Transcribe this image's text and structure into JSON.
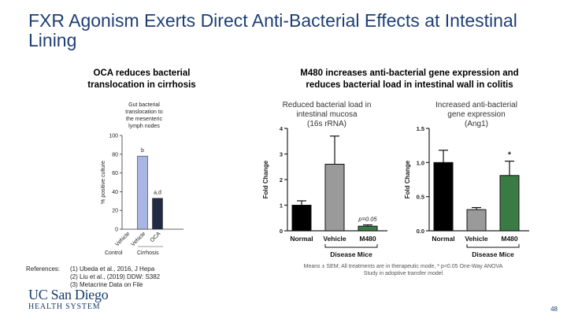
{
  "slide": {
    "title": "FXR Agonism Exerts Direct Anti-Bacterial Effects at Intestinal Lining",
    "page_number": "48"
  },
  "left_panel": {
    "heading_lines": [
      "OCA reduces bacterial",
      "translocation in cirrhosis"
    ]
  },
  "right_panel": {
    "heading_lines": [
      "M480 increases anti-bacterial gene expression and",
      "reduces bacterial load in intestinal wall in colitis"
    ]
  },
  "references": {
    "label": "References:",
    "items": [
      "(1) Ubeda et al., 2016, J Hepa",
      "(2) Liu et al., (2019) DDW: S382",
      "(3) Metacrine Data on File"
    ]
  },
  "footnote_lines": [
    "Means ± SEM; All treatments are in therapeutic mode, * p<0.05 One-Way ANOVA",
    "Study in adoptive transfer model"
  ],
  "logo": {
    "line1": "UC San Diego",
    "line2": "HEALTH SYSTEM"
  },
  "chart_data": [
    {
      "type": "bar",
      "title": "Gut bacterial translocation to the mesenteric lymph nodes",
      "title_lines": [
        "Gut bacterial",
        "translocation to",
        "the mesenteric",
        "lymph nodes"
      ],
      "ylabel": "% positive culture",
      "ylim": [
        0,
        100
      ],
      "yticks": [
        "0",
        "20",
        "40",
        "60",
        "80",
        "100"
      ],
      "categories": [
        "Vehicle",
        "Vehicle",
        "OCA"
      ],
      "values": [
        0,
        78,
        33
      ],
      "annotations": [
        "",
        "b",
        "a,d"
      ],
      "group_labels": [
        "Control",
        "Cirrhosis"
      ],
      "colors": [
        "#7d90c8",
        "#a9b5e3",
        "#222a44"
      ]
    },
    {
      "type": "bar",
      "title": "Reduced bacterial load in intestinal mucosa (16s rRNA)",
      "title_lines": [
        "Reduced bacterial load in",
        "intestinal mucosa",
        "(16s rRNA)"
      ],
      "ylabel": "Fold Change",
      "ylim": [
        0,
        4
      ],
      "yticks": [
        "0",
        "1",
        "2",
        "3",
        "4"
      ],
      "categories": [
        "Normal",
        "Vehicle",
        "M480"
      ],
      "values": [
        1.0,
        2.6,
        0.18
      ],
      "errors": [
        0.17,
        1.1,
        0.05
      ],
      "annotation": "p=0.05",
      "bracket_label": "Disease Mice",
      "colors": [
        "#000000",
        "#9a9a9a",
        "#3a7a45"
      ]
    },
    {
      "type": "bar",
      "title": "Increased anti-bacterial gene expression (Ang1)",
      "title_lines": [
        "Increased anti-bacterial",
        "gene expression",
        "(Ang1)"
      ],
      "ylabel": "Fold Change",
      "ylim": [
        0,
        1.5
      ],
      "yticks": [
        "0.0",
        "0.5",
        "1.0",
        "1.5"
      ],
      "categories": [
        "Normal",
        "Vehicle",
        "M480"
      ],
      "values": [
        1.0,
        0.31,
        0.81
      ],
      "errors": [
        0.18,
        0.03,
        0.21
      ],
      "annotation": "*",
      "bracket_label": "Disease Mice",
      "colors": [
        "#000000",
        "#9a9a9a",
        "#3a7a45"
      ]
    }
  ]
}
